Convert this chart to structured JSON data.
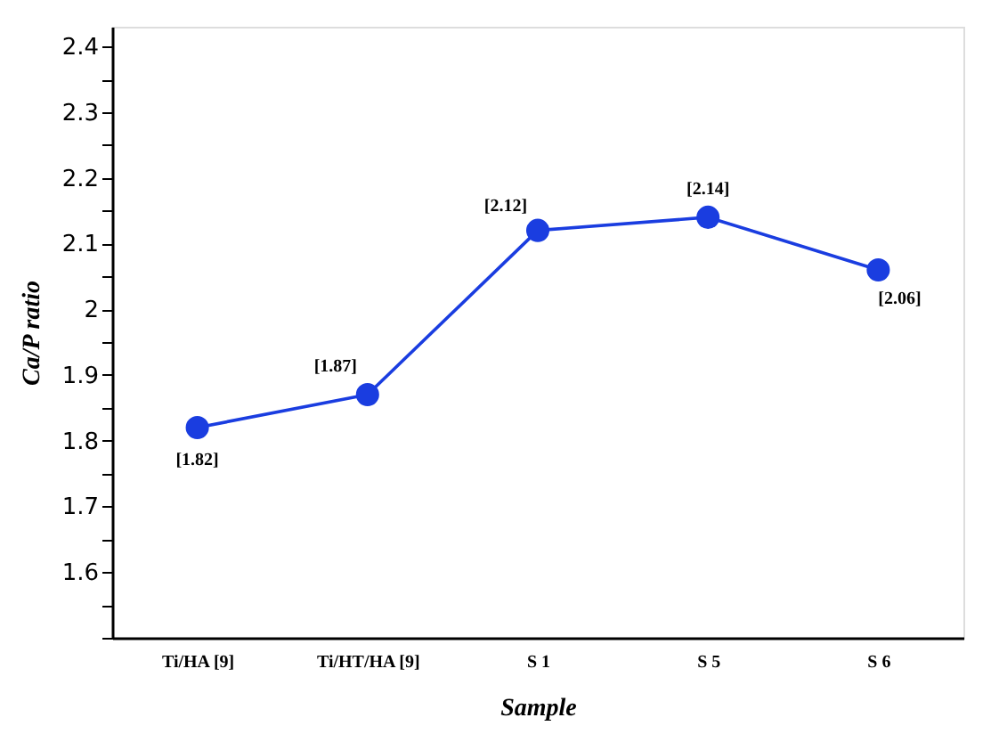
{
  "chart_data": {
    "type": "line",
    "xlabel": "Sample",
    "ylabel": "Ca/P ratio",
    "categories": [
      "Ti/HA [9]",
      "Ti/HT/HA [9]",
      "S 1",
      "S 5",
      "S 6"
    ],
    "series": [
      {
        "color": "#1a3de0",
        "values": [
          1.82,
          1.87,
          2.12,
          2.14,
          2.06
        ],
        "value_labels": [
          "[1.82]",
          "[1.87]",
          "[2.12]",
          "[2.14]",
          "[2.06]"
        ]
      }
    ],
    "ylim": [
      1.5,
      2.43
    ],
    "yticks": [
      {
        "value": 1.5,
        "label": null
      },
      {
        "value": 1.55,
        "label": null
      },
      1.6,
      {
        "value": 1.65,
        "label": null
      },
      1.7,
      {
        "value": 1.75,
        "label": null
      },
      1.8,
      {
        "value": 1.85,
        "label": null
      },
      1.9,
      {
        "value": 1.95,
        "label": null
      },
      {
        "value": 2.0,
        "label": "2"
      },
      {
        "value": 2.05,
        "label": null
      },
      2.1,
      {
        "value": 2.15,
        "label": null
      },
      2.2,
      {
        "value": 2.25,
        "label": null
      },
      2.3,
      {
        "value": 2.35,
        "label": null
      },
      2.4
    ],
    "grid": false,
    "legend": false,
    "marker": "circle",
    "line_style": "solid"
  }
}
